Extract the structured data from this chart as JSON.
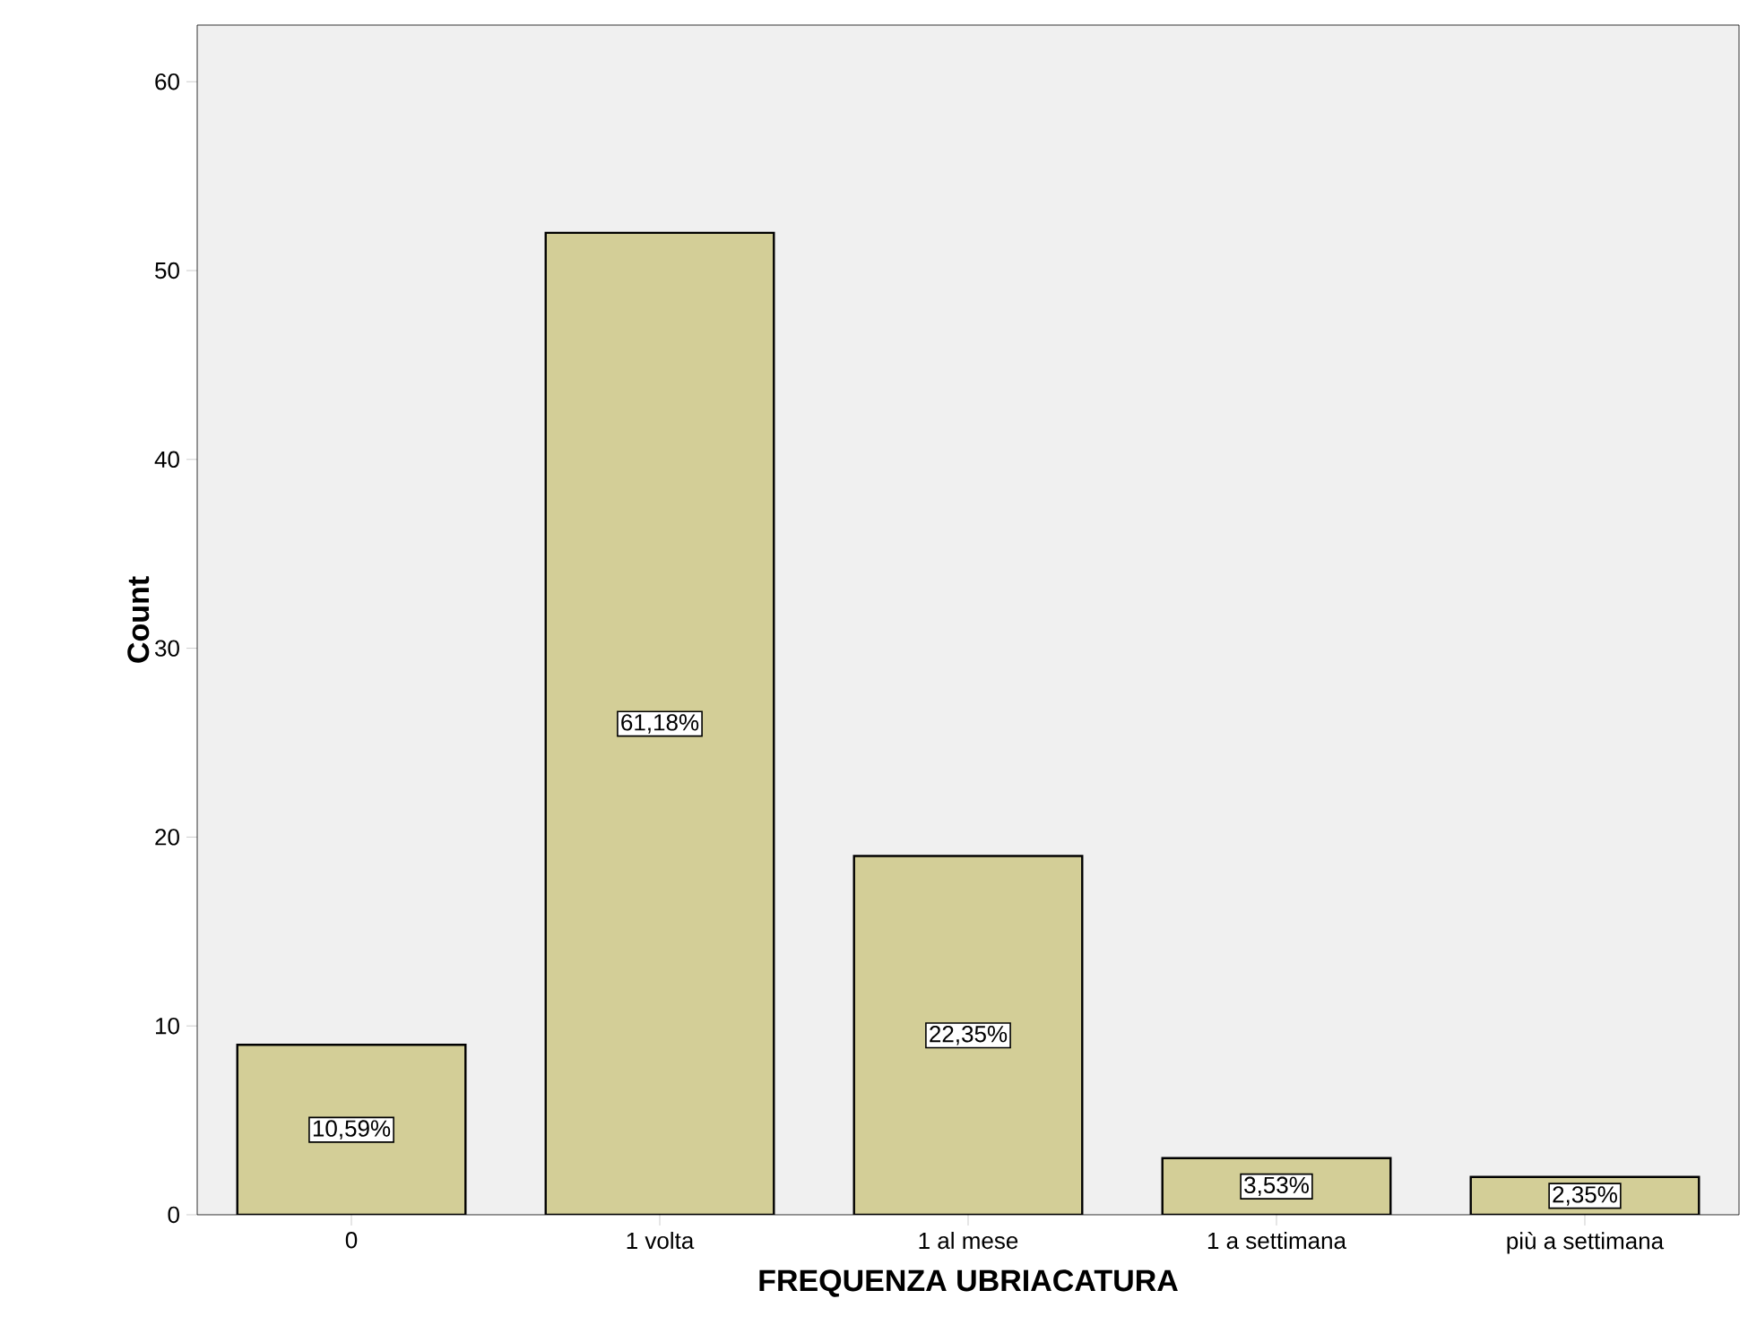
{
  "chart_data": {
    "type": "bar",
    "xlabel": "FREQUENZA UBRIACATURA",
    "ylabel": "Count",
    "categories": [
      "0",
      "1 volta",
      "1 al mese",
      "1 a settimana",
      "più a settimana"
    ],
    "values": [
      9,
      52,
      19,
      3,
      2
    ],
    "annotations": [
      "10,59%",
      "61,18%",
      "22,35%",
      "3,53%",
      "2,35%"
    ],
    "color": "#d3ce97",
    "ylim": [
      0,
      63
    ],
    "yticks": [
      0,
      10,
      20,
      30,
      40,
      50,
      60
    ]
  }
}
